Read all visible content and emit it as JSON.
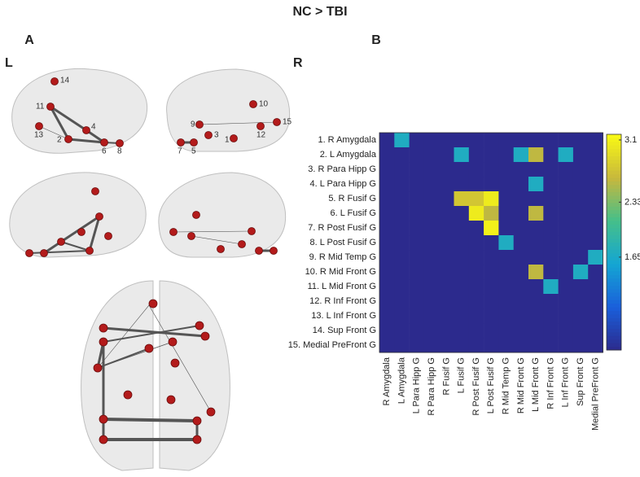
{
  "title": "NC > TBI",
  "panel_a": {
    "label": "A",
    "left": "L",
    "right": "R",
    "left_nodes": [
      "14",
      "11",
      "13",
      "2",
      "4",
      "6",
      "8"
    ],
    "right_nodes": [
      "10",
      "9",
      "15",
      "3",
      "1",
      "12",
      "7",
      "5"
    ]
  },
  "panel_b": {
    "label": "B"
  },
  "chart_data": {
    "type": "heatmap",
    "rows": [
      "1. R Amygdala",
      "2. L Amygdala",
      "3. R Para Hipp G",
      "4. L Para Hipp G",
      "5. R Fusif G",
      "6. L Fusif G",
      "7. R Post Fusif G",
      "8. L Post Fusif G",
      "9. R Mid Temp G",
      "10. R Mid Front G",
      "11. L Mid Front G",
      "12. R Inf Front G",
      "13. L Inf Front G",
      "14. Sup Front G",
      "15. Medial PreFront G"
    ],
    "columns": [
      "R Amygdala",
      "L Amygdala",
      "L Para Hipp G",
      "R Para Hipp G",
      "R Fusif G",
      "L Fusif G",
      "R Post Fusif G",
      "L Post Fusif G",
      "R Mid Temp G",
      "R Mid Front G",
      "L Mid Front G",
      "R Inf Front G",
      "L Inf Front G",
      "Sup Front G",
      "Medial PreFront G"
    ],
    "matrix": [
      [
        0,
        1.7,
        0,
        0,
        0,
        0,
        0,
        0,
        0,
        0,
        0,
        0,
        0,
        0,
        0
      ],
      [
        0,
        0,
        0,
        0,
        0,
        1.7,
        0,
        0,
        0,
        1.7,
        2.6,
        0,
        1.7,
        0,
        0
      ],
      [
        0,
        0,
        0,
        0,
        0,
        0,
        0,
        0,
        0,
        0,
        0,
        0,
        0,
        0,
        0
      ],
      [
        0,
        0,
        0,
        0,
        0,
        0,
        0,
        0,
        0,
        0,
        1.7,
        0,
        0,
        0,
        0
      ],
      [
        0,
        0,
        0,
        0,
        0,
        2.75,
        2.75,
        3.05,
        0,
        0,
        0,
        0,
        0,
        0,
        0
      ],
      [
        0,
        0,
        0,
        0,
        0,
        0,
        3.05,
        2.6,
        0,
        0,
        2.6,
        0,
        0,
        0,
        0
      ],
      [
        0,
        0,
        0,
        0,
        0,
        0,
        0,
        3.1,
        0,
        0,
        0,
        0,
        0,
        0,
        0
      ],
      [
        0,
        0,
        0,
        0,
        0,
        0,
        0,
        0,
        1.7,
        0,
        0,
        0,
        0,
        0,
        0
      ],
      [
        0,
        0,
        0,
        0,
        0,
        0,
        0,
        0,
        0,
        0,
        0,
        0,
        0,
        0,
        1.7
      ],
      [
        0,
        0,
        0,
        0,
        0,
        0,
        0,
        0,
        0,
        0,
        2.6,
        0,
        0,
        1.7,
        0
      ],
      [
        0,
        0,
        0,
        0,
        0,
        0,
        0,
        0,
        0,
        0,
        0,
        1.7,
        0,
        0,
        0
      ],
      [
        0,
        0,
        0,
        0,
        0,
        0,
        0,
        0,
        0,
        0,
        0,
        0,
        0,
        0,
        0
      ],
      [
        0,
        0,
        0,
        0,
        0,
        0,
        0,
        0,
        0,
        0,
        0,
        0,
        0,
        0,
        0
      ],
      [
        0,
        0,
        0,
        0,
        0,
        0,
        0,
        0,
        0,
        0,
        0,
        0,
        0,
        0,
        0
      ],
      [
        0,
        0,
        0,
        0,
        0,
        0,
        0,
        0,
        0,
        0,
        0,
        0,
        0,
        0,
        0
      ]
    ],
    "zlim": [
      0.5,
      3.17
    ],
    "zticks": [
      1.65,
      2.33,
      3.1
    ],
    "colormap": [
      "#2c2a8d",
      "#1a5fdb",
      "#14a6d3",
      "#45bf8a",
      "#c8b83c",
      "#f9fa14"
    ]
  }
}
